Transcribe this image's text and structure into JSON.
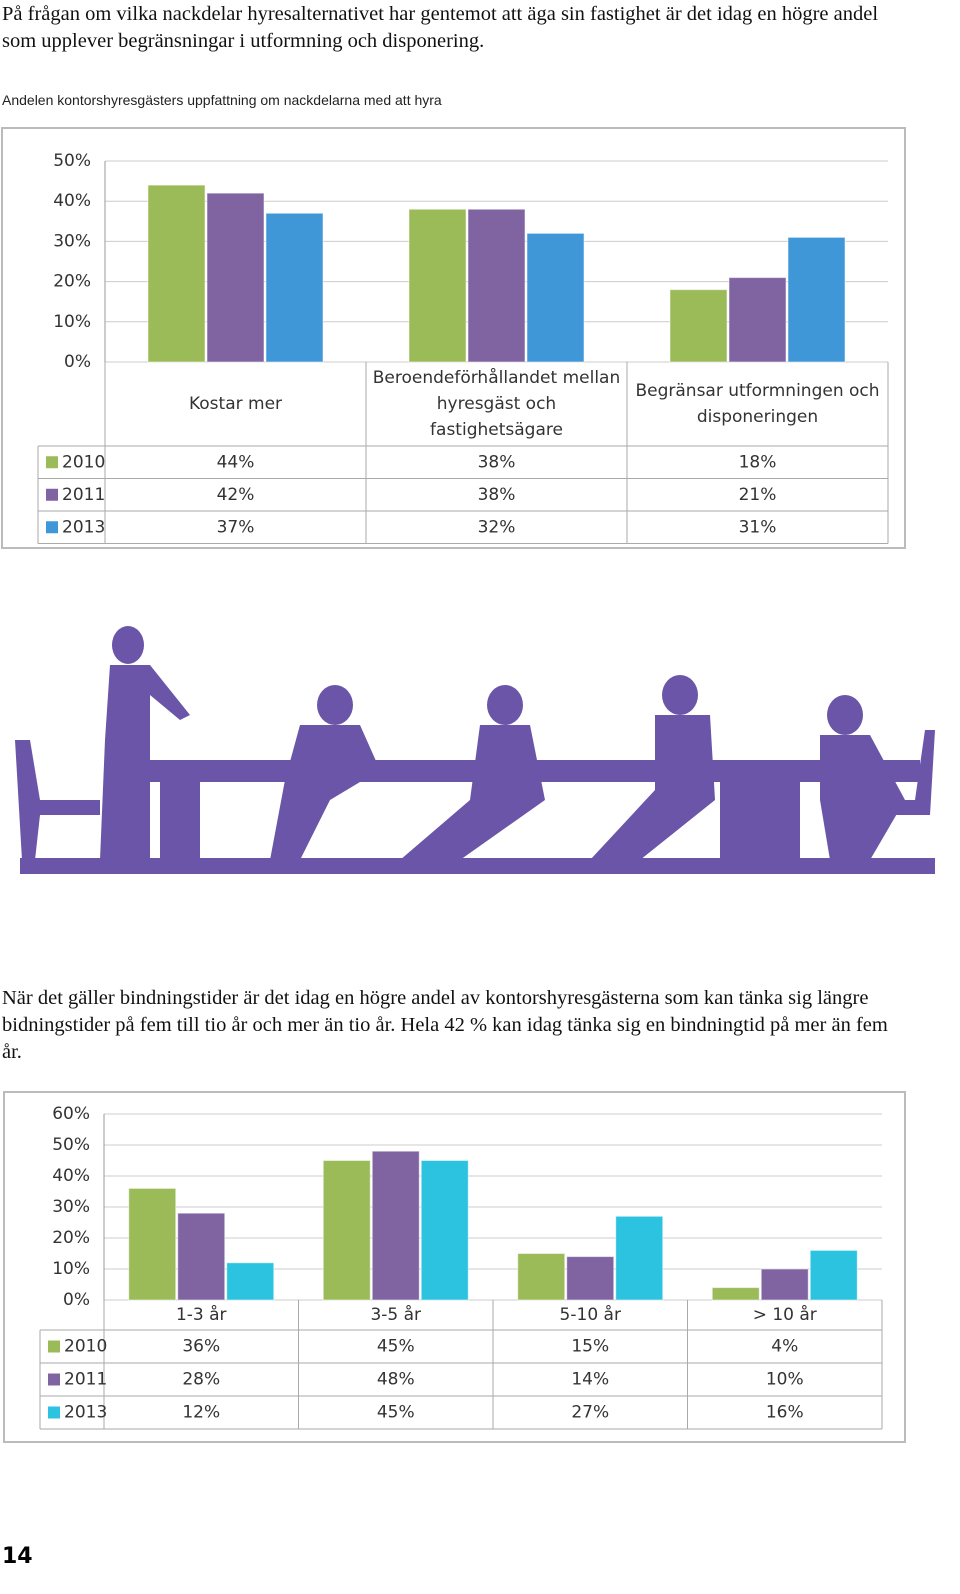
{
  "paragraphs": [
    "På frågan om vilka nackdelar hyresalternativet har gentemot att äga sin fastighet är det idag en högre andel som upplever begränsningar i utformning och disponering.",
    "När det gäller bindningstider är det idag en högre andel av kontorshyresgästerna som kan tänka sig längre bidningstider på fem till tio år och mer än tio år. Hela 42 % kan idag tänka sig en bindningtid på mer än fem år."
  ],
  "caption": "Andelen kontorshyresgästers uppfattning om nackdelarna med att hyra",
  "page_number": "14",
  "chart_data": [
    {
      "type": "bar",
      "categories": [
        "Kostar mer",
        "Beroendeförhållandet mellan hyresgäst och fastighetsägare",
        "Begränsar utformningen och disponeringen"
      ],
      "series": [
        {
          "name": "2010",
          "color": "#9bbb59",
          "values": [
            44,
            38,
            18
          ],
          "value_labels": [
            "44%",
            "38%",
            "18%"
          ]
        },
        {
          "name": "2011",
          "color": "#8064a2",
          "values": [
            42,
            38,
            21
          ],
          "value_labels": [
            "42%",
            "38%",
            "21%"
          ]
        },
        {
          "name": "2013",
          "color": "#3f97d8",
          "values": [
            37,
            32,
            31
          ],
          "value_labels": [
            "37%",
            "32%",
            "31%"
          ]
        }
      ],
      "ylim": [
        0,
        50
      ],
      "yticks": [
        {
          "value": 0,
          "label": "0%"
        },
        {
          "value": 10,
          "label": "10%"
        },
        {
          "value": 20,
          "label": "20%"
        },
        {
          "value": 30,
          "label": "30%"
        },
        {
          "value": 40,
          "label": "40%"
        },
        {
          "value": 50,
          "label": "50%"
        }
      ],
      "grid": true
    },
    {
      "type": "bar",
      "categories": [
        "1-3 år",
        "3-5 år",
        "5-10 år",
        "> 10 år"
      ],
      "series": [
        {
          "name": "2010",
          "color": "#9bbb59",
          "values": [
            36,
            45,
            15,
            4
          ],
          "value_labels": [
            "36%",
            "45%",
            "15%",
            "4%"
          ]
        },
        {
          "name": "2011",
          "color": "#8064a2",
          "values": [
            28,
            48,
            14,
            10
          ],
          "value_labels": [
            "28%",
            "48%",
            "14%",
            "10%"
          ]
        },
        {
          "name": "2013",
          "color": "#2cc3e0",
          "values": [
            12,
            45,
            27,
            16
          ],
          "value_labels": [
            "12%",
            "45%",
            "27%",
            "16%"
          ]
        }
      ],
      "ylim": [
        0,
        60
      ],
      "yticks": [
        {
          "value": 0,
          "label": "0%"
        },
        {
          "value": 10,
          "label": "10%"
        },
        {
          "value": 20,
          "label": "20%"
        },
        {
          "value": 30,
          "label": "30%"
        },
        {
          "value": 40,
          "label": "40%"
        },
        {
          "value": 50,
          "label": "50%"
        },
        {
          "value": 60,
          "label": "60%"
        }
      ],
      "grid": true
    }
  ]
}
